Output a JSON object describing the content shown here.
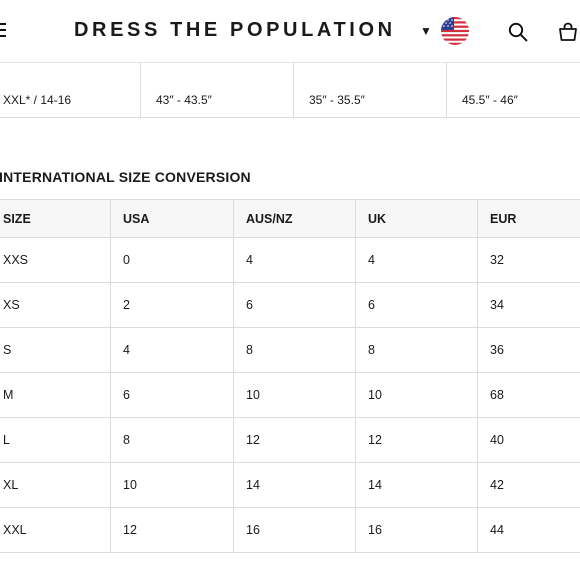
{
  "header": {
    "brand": "DRESS THE POPULATION",
    "menu_icon": "hamburger-menu-icon",
    "caret": "▼",
    "flag_icon": "us-flag-icon",
    "search_icon": "search-icon",
    "bag_icon": "shopping-bag-icon"
  },
  "previous_table_row": [
    "XXL* / 14-16",
    "43″ - 43.5″",
    "35″ - 35.5″",
    "45.5″ - 46″"
  ],
  "international": {
    "title": "INTERNATIONAL SIZE CONVERSION",
    "columns": [
      "SIZE",
      "USA",
      "AUS/NZ",
      "UK",
      "EUR"
    ],
    "rows": [
      [
        "XXS",
        "0",
        "4",
        "4",
        "32"
      ],
      [
        "XS",
        "2",
        "6",
        "6",
        "34"
      ],
      [
        "S",
        "4",
        "8",
        "8",
        "36"
      ],
      [
        "M",
        "6",
        "10",
        "10",
        "68"
      ],
      [
        "L",
        "8",
        "12",
        "12",
        "40"
      ],
      [
        "XL",
        "10",
        "14",
        "14",
        "42"
      ],
      [
        "XXL",
        "12",
        "16",
        "16",
        "44"
      ]
    ]
  }
}
